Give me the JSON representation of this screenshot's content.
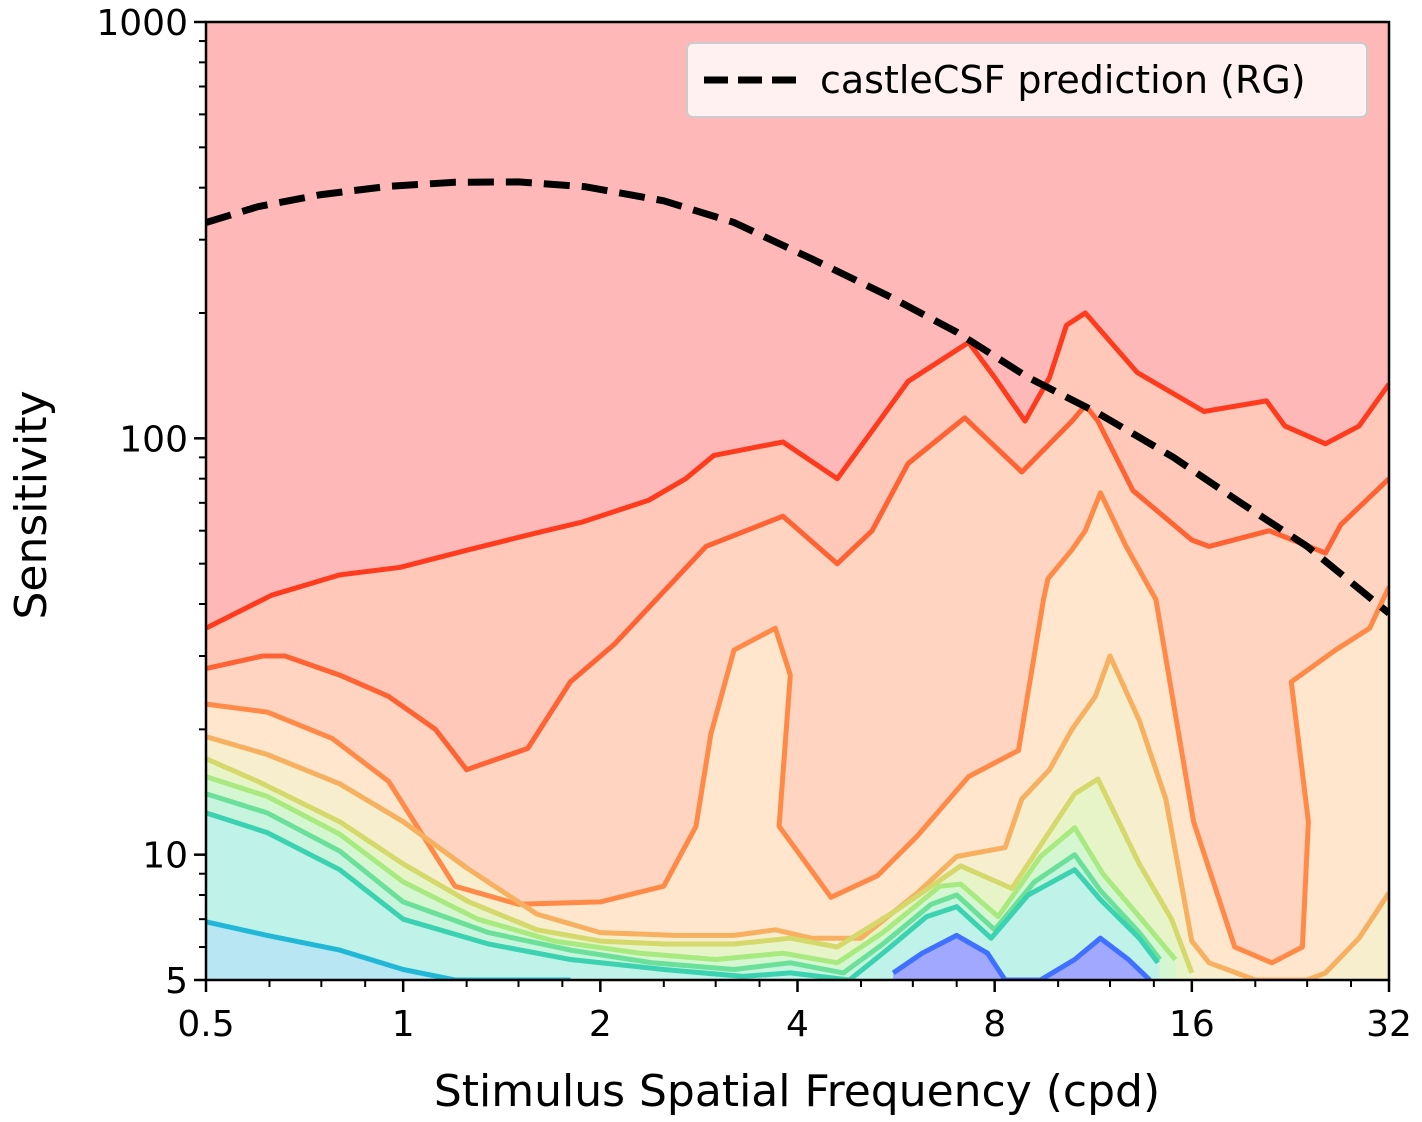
{
  "chart_data": {
    "type": "line",
    "subtype": "filled-contour",
    "title": "",
    "xlabel": "Stimulus Spatial Frequency (cpd)",
    "ylabel": "Sensitivity",
    "xscale": "log2",
    "yscale": "log10",
    "xlim": [
      0.5,
      32
    ],
    "ylim": [
      5,
      1000
    ],
    "xticks": [
      0.5,
      1,
      2,
      4,
      8,
      16,
      32
    ],
    "xtick_labels": [
      "0.5",
      "1",
      "2",
      "4",
      "8",
      "16",
      "32"
    ],
    "yticks": [
      5,
      10,
      100,
      1000
    ],
    "ytick_labels": [
      "5",
      "10",
      "100",
      "1000"
    ],
    "grid": false,
    "legend": {
      "position": "top-right",
      "entries": [
        "castleCSF prediction (RG)"
      ]
    },
    "background_fill": "#ffb8b8",
    "series": [
      {
        "name": "castleCSF prediction (RG)",
        "style": "dashed",
        "color": "#000000",
        "x": [
          0.5,
          0.6,
          0.75,
          0.95,
          1.2,
          1.5,
          1.9,
          2.5,
          3.2,
          4.2,
          5.5,
          7,
          9,
          11.5,
          15,
          19,
          24,
          32
        ],
        "y": [
          330,
          360,
          385,
          403,
          412,
          413,
          402,
          372,
          330,
          270,
          220,
          180,
          140,
          115,
          90,
          70,
          55,
          38
        ]
      }
    ],
    "contours": [
      {
        "color": "#ff3b1e",
        "fill": "#ffc8b8",
        "x": [
          0.5,
          0.63,
          0.8,
          0.99,
          1.26,
          1.58,
          1.88,
          2.37,
          2.7,
          2.98,
          3.8,
          4.6,
          5.9,
          7.3,
          8,
          8.9,
          9.7,
          10.3,
          11,
          13.2,
          16.7,
          20.8,
          22.2,
          25.6,
          28.8,
          32
        ],
        "y": [
          35,
          42,
          47,
          49,
          54,
          59,
          63,
          71,
          80,
          91,
          98,
          80,
          137,
          170,
          140,
          110,
          140,
          187,
          200,
          144,
          116,
          123,
          107,
          97,
          107,
          135
        ]
      },
      {
        "color": "#ff6233",
        "fill": "#ffd4c0",
        "x": [
          0.5,
          0.61,
          0.66,
          0.8,
          0.95,
          1.12,
          1.25,
          1.55,
          1.8,
          2.1,
          2.9,
          3.8,
          4.6,
          5.2,
          5.9,
          7.2,
          8.8,
          10.5,
          11,
          11.5,
          13,
          16,
          17,
          21,
          25.6,
          27,
          32
        ],
        "y": [
          28,
          30,
          30,
          27,
          24,
          20,
          16,
          18,
          26,
          32,
          55,
          65,
          50,
          60,
          87,
          112,
          83,
          110,
          120,
          110,
          75,
          57,
          55,
          60,
          53,
          62,
          80
        ]
      },
      {
        "color": "#ff8a48",
        "fill": "#ffe6cc",
        "x": [
          0.5,
          0.62,
          0.78,
          0.95,
          1.2,
          1.5,
          2.0,
          2.5,
          2.8,
          2.95,
          3.2,
          3.7,
          3.9,
          3.75,
          4.5,
          5.3,
          6.1,
          7.3,
          8.7,
          9.5,
          9.65,
          10.5,
          11.0,
          11.6,
          12.7,
          14.1,
          16.1,
          18.6,
          21.2,
          23.6,
          24.1,
          22.7,
          26.5,
          29.9,
          32
        ],
        "y": [
          23,
          22,
          19,
          15,
          8.4,
          7.6,
          7.7,
          8.4,
          11.7,
          19.5,
          31,
          35,
          27,
          11.7,
          7.9,
          8.9,
          11.1,
          15.4,
          17.8,
          41,
          46,
          54,
          60,
          74,
          55,
          41,
          12,
          6.0,
          5.5,
          6.0,
          12,
          26,
          31,
          35,
          44
        ]
      },
      {
        "color": "#f6b060",
        "fill": "#f6eecd",
        "x": [
          0.5,
          0.62,
          0.8,
          1.0,
          1.25,
          1.6,
          2.0,
          2.6,
          3.2,
          3.7,
          4.2,
          5.0,
          6.1,
          7.0,
          8.3,
          8.8,
          9.7,
          10.5,
          11.4,
          12.0,
          13.3,
          14.6,
          16,
          17,
          20,
          24,
          25.6,
          28.8,
          32
        ],
        "y": [
          19.2,
          17.4,
          14.8,
          12,
          9.3,
          7.2,
          6.5,
          6.4,
          6.4,
          6.6,
          6.3,
          6.3,
          8.1,
          9.9,
          10.4,
          13.6,
          16,
          20,
          24,
          30,
          21,
          13.6,
          6.2,
          5.5,
          5.0,
          5.0,
          5.2,
          6.3,
          8.1
        ]
      },
      {
        "color": "#d5d86a",
        "fill": "#e6f4c8",
        "x": [
          0.5,
          0.6,
          0.8,
          1.0,
          1.26,
          1.6,
          2.0,
          2.5,
          3.2,
          3.9,
          4.6,
          5.7,
          7.1,
          8.5,
          10.6,
          11.5,
          13.3,
          14.9,
          16
        ],
        "y": [
          17,
          15,
          12,
          9.5,
          7.7,
          6.6,
          6.2,
          6.1,
          6.1,
          6.3,
          6.0,
          7.4,
          9.4,
          8.3,
          14,
          15.2,
          9.5,
          7.0,
          5.2
        ]
      },
      {
        "color": "#a8ea80",
        "fill": "#d4f6d0",
        "x": [
          0.5,
          0.62,
          0.8,
          1.0,
          1.3,
          1.7,
          2.3,
          3.0,
          3.8,
          4.6,
          5.4,
          6.6,
          7.1,
          8.1,
          9.4,
          10.6,
          11.7,
          13.3,
          15.1
        ],
        "y": [
          15.4,
          13.8,
          11.2,
          8.6,
          7.0,
          6.2,
          5.8,
          5.6,
          5.8,
          5.5,
          6.5,
          8.4,
          8.5,
          7.1,
          9.9,
          11.6,
          9.0,
          7.1,
          5.6
        ]
      },
      {
        "color": "#6ae09a",
        "fill": "#c6f4dc",
        "x": [
          0.5,
          0.62,
          0.8,
          1.0,
          1.35,
          1.8,
          2.4,
          3.2,
          3.9,
          4.7,
          5.4,
          6.4,
          7.0,
          8.0,
          9.2,
          10.6,
          11.6,
          13.3,
          14.3
        ],
        "y": [
          14,
          12.6,
          10.2,
          7.7,
          6.5,
          5.9,
          5.5,
          5.3,
          5.5,
          5.2,
          6.1,
          7.6,
          8.0,
          6.6,
          8.6,
          10.0,
          8.2,
          6.5,
          5.6
        ]
      },
      {
        "color": "#3ad2b0",
        "fill": "#bff2e8",
        "x": [
          0.5,
          0.62,
          0.8,
          1.0,
          1.35,
          1.8,
          2.5,
          3.3,
          3.9,
          4.8,
          5.4,
          6.3,
          7.0,
          7.9,
          9.0,
          10.6,
          11.6,
          13.3,
          14.2
        ],
        "y": [
          12.6,
          11.3,
          9.2,
          7.0,
          6.1,
          5.6,
          5.3,
          5.1,
          5.2,
          5.0,
          5.8,
          7.1,
          7.5,
          6.3,
          8.0,
          9.2,
          7.8,
          6.3,
          5.5
        ]
      },
      {
        "color": "#20b8d6",
        "fill": "#b8e6f2",
        "x": [
          0.5,
          0.62,
          0.8,
          1.0,
          1.2,
          1.5,
          1.8
        ],
        "y": [
          6.9,
          6.4,
          5.9,
          5.3,
          5.0,
          5.0,
          5.0
        ]
      },
      {
        "color": "#4070ff",
        "fill": "#a0a8ff",
        "x": [
          5.6,
          6.2,
          7.0,
          7.8,
          8.3,
          9.4,
          10.6,
          11.6,
          12.8,
          13.8
        ],
        "y": [
          5.2,
          5.8,
          6.4,
          5.8,
          5.0,
          5.0,
          5.6,
          6.3,
          5.6,
          5.0
        ]
      }
    ]
  }
}
